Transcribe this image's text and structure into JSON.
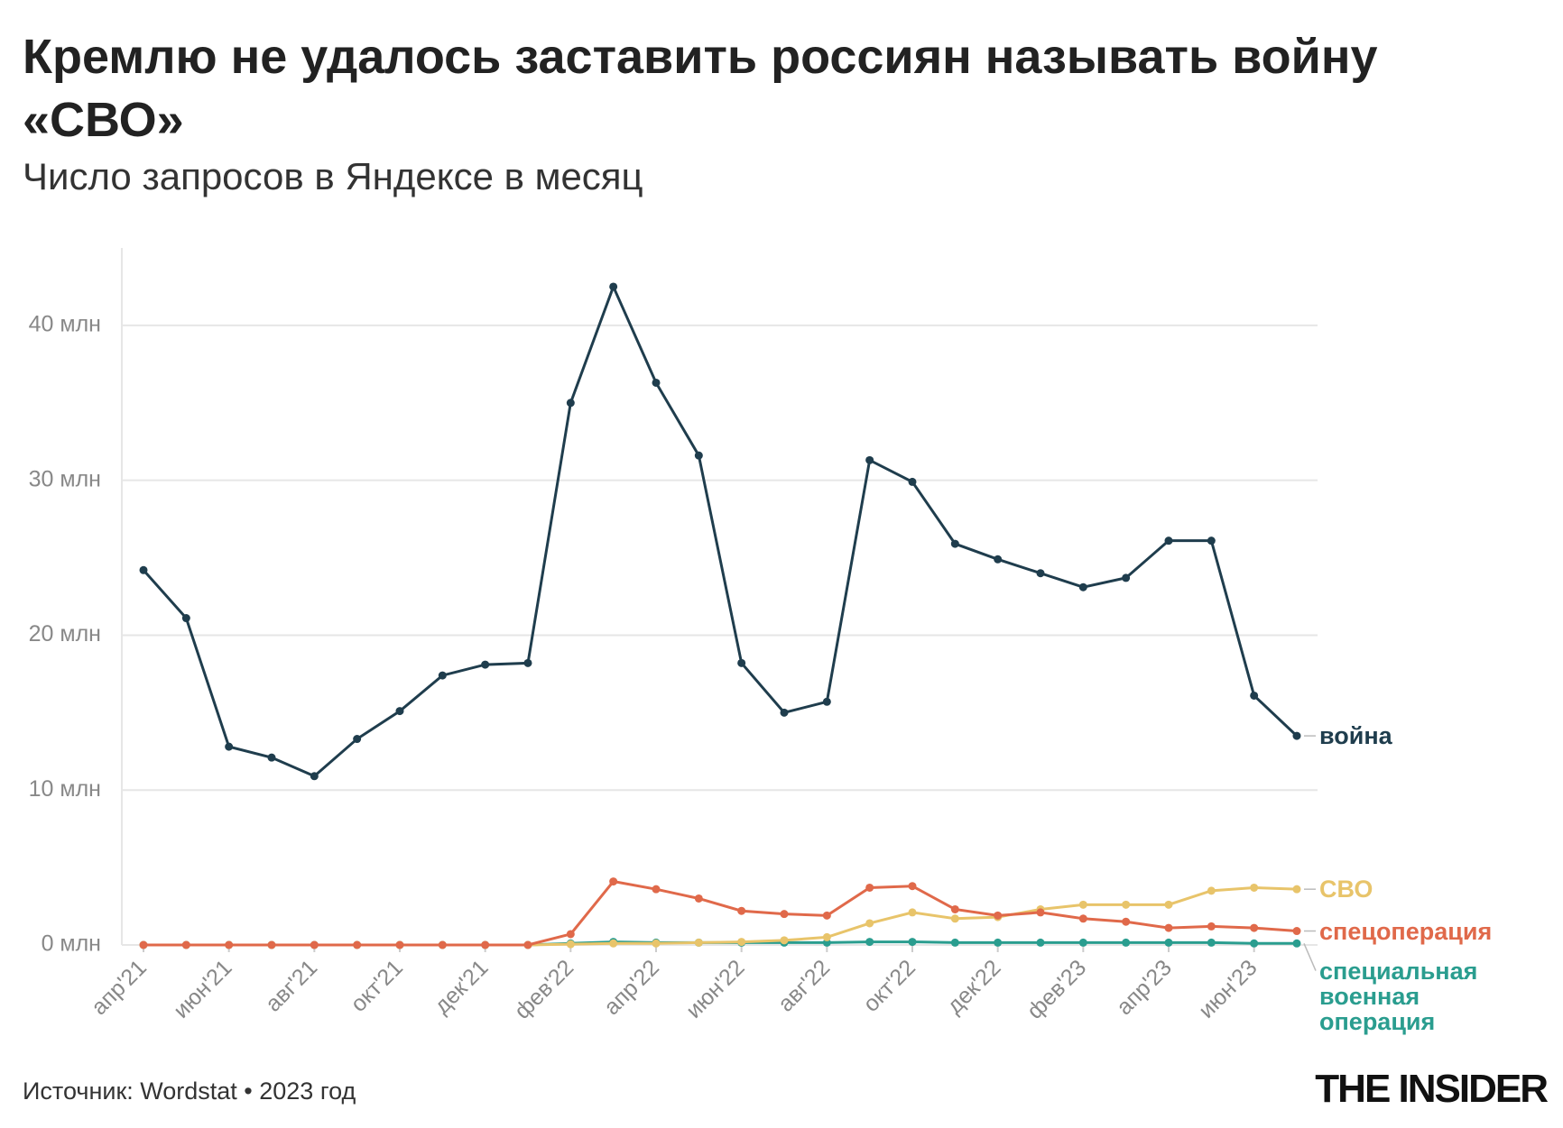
{
  "chart_data": {
    "type": "line",
    "title": "Кремлю не удалось заставить россиян называть войну «СВО»",
    "subtitle": "Число запросов в Яндексе в месяц",
    "source": "Источник: Wordstat • 2023 год",
    "logo": "THE INSIDER",
    "categories": [
      "апр'21",
      null,
      "июн'21",
      null,
      "авг'21",
      null,
      "окт'21",
      null,
      "дек'21",
      null,
      "фев'22",
      null,
      "апр'22",
      null,
      "июн'22",
      null,
      "авг'22",
      null,
      "окт'22",
      null,
      "дек'22",
      null,
      "фев'23",
      null,
      "апр'23",
      null,
      "июн'23",
      null
    ],
    "series": [
      {
        "name": "война",
        "color": "#1f3d4d",
        "values": [
          24.2,
          21.1,
          12.8,
          12.1,
          10.9,
          13.3,
          15.1,
          17.4,
          18.1,
          18.2,
          35.0,
          42.5,
          36.3,
          31.6,
          18.2,
          15.0,
          15.7,
          31.3,
          29.9,
          25.9,
          24.9,
          24.0,
          23.1,
          23.7,
          26.1,
          26.1,
          16.1,
          13.5
        ]
      },
      {
        "name": "СВО",
        "color": "#e8c46a",
        "values": [
          0,
          0,
          0,
          0,
          0,
          0,
          0,
          0,
          0,
          0,
          0.05,
          0.1,
          0.1,
          0.15,
          0.2,
          0.3,
          0.5,
          1.4,
          2.1,
          1.7,
          1.8,
          2.3,
          2.6,
          2.6,
          2.6,
          3.5,
          3.7,
          3.6
        ]
      },
      {
        "name": "спецоперация",
        "color": "#e0694a",
        "values": [
          0,
          0,
          0,
          0,
          0,
          0,
          0,
          0,
          0,
          0,
          0.7,
          4.1,
          3.6,
          3.0,
          2.2,
          2.0,
          1.9,
          3.7,
          3.8,
          2.3,
          1.9,
          2.1,
          1.7,
          1.5,
          1.1,
          1.2,
          1.1,
          0.9
        ]
      },
      {
        "name": "специальная военная операция",
        "color": "#2a9d8f",
        "values": [
          0,
          0,
          0,
          0,
          0,
          0,
          0,
          0,
          0,
          0,
          0.1,
          0.2,
          0.15,
          0.15,
          0.15,
          0.15,
          0.15,
          0.2,
          0.2,
          0.15,
          0.15,
          0.15,
          0.15,
          0.15,
          0.15,
          0.15,
          0.1,
          0.1
        ]
      }
    ],
    "ylim": [
      0,
      45
    ],
    "yticks": [
      {
        "value": 0,
        "label": "0 млн"
      },
      {
        "value": 10,
        "label": "10 млн"
      },
      {
        "value": 20,
        "label": "20 млн"
      },
      {
        "value": 30,
        "label": "30 млн"
      },
      {
        "value": 40,
        "label": "40 млн"
      }
    ],
    "grid": true
  }
}
